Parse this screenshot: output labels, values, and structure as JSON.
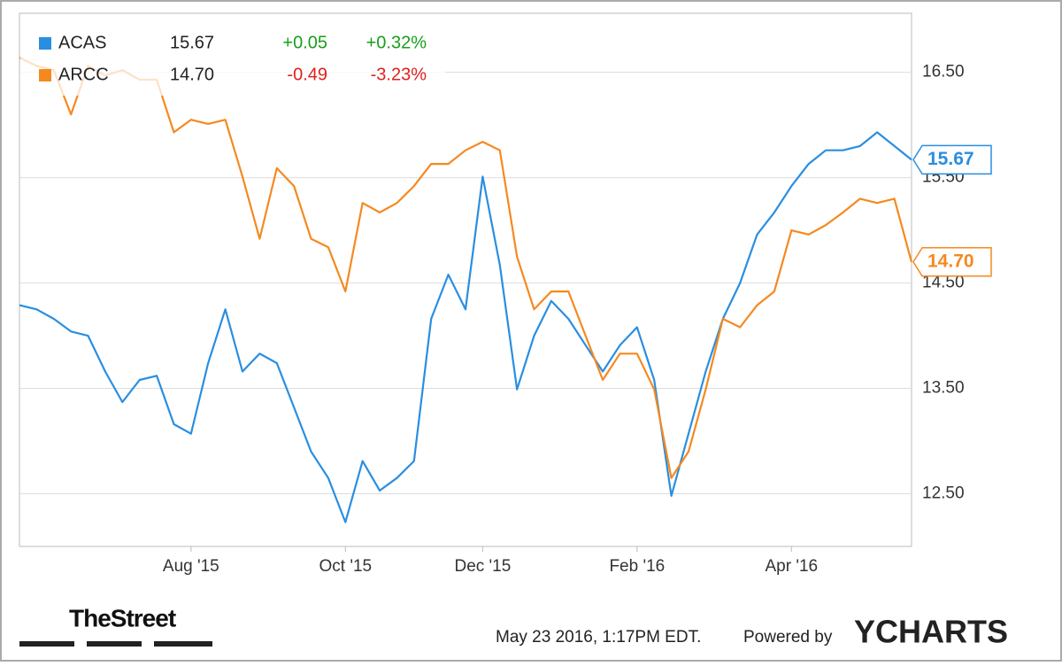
{
  "chart_data": {
    "type": "line",
    "categories": [
      null,
      null,
      null,
      null,
      null,
      null,
      null,
      null,
      null,
      null,
      "Aug '15",
      null,
      null,
      null,
      null,
      null,
      null,
      null,
      null,
      "Oct '15",
      null,
      null,
      null,
      null,
      null,
      null,
      null,
      "Dec '15",
      null,
      null,
      null,
      null,
      null,
      null,
      null,
      null,
      "Feb '16",
      null,
      null,
      null,
      null,
      null,
      null,
      null,
      null,
      "Apr '16",
      null,
      null,
      null,
      null,
      null,
      null,
      null
    ],
    "series": [
      {
        "name": "ACAS",
        "color": "#2a8ee0",
        "last": "15.67",
        "change": "+0.05",
        "change_pct": "+0.32%",
        "change_color": "#1a9e1a",
        "values": [
          14.29,
          14.25,
          14.16,
          14.04,
          14.0,
          13.66,
          13.37,
          13.58,
          13.62,
          13.16,
          13.07,
          13.74,
          14.25,
          13.66,
          13.83,
          13.74,
          13.32,
          12.9,
          12.65,
          12.23,
          12.81,
          12.53,
          12.65,
          12.81,
          14.16,
          14.58,
          14.25,
          15.51,
          14.67,
          13.49,
          14.0,
          14.33,
          14.16,
          13.91,
          13.66,
          13.91,
          14.08,
          13.58,
          12.48,
          13.07,
          13.66,
          14.16,
          14.5,
          14.96,
          15.17,
          15.42,
          15.63,
          15.76,
          15.76,
          15.8,
          15.93,
          15.8,
          15.67
        ]
      },
      {
        "name": "ARCC",
        "color": "#f5891f",
        "last": "14.70",
        "change": "-0.49",
        "change_pct": "-3.23%",
        "change_color": "#e0201c",
        "values": [
          16.64,
          16.56,
          16.52,
          16.1,
          16.56,
          16.47,
          16.52,
          16.43,
          16.43,
          15.93,
          16.05,
          16.01,
          16.05,
          15.51,
          14.92,
          15.59,
          15.42,
          14.92,
          14.84,
          14.42,
          15.26,
          15.17,
          15.26,
          15.42,
          15.63,
          15.63,
          15.76,
          15.84,
          15.76,
          14.75,
          14.25,
          14.42,
          14.42,
          14.0,
          13.58,
          13.83,
          13.83,
          13.49,
          12.65,
          12.9,
          13.49,
          14.16,
          14.08,
          14.29,
          14.42,
          15.0,
          14.96,
          15.05,
          15.17,
          15.3,
          15.26,
          15.3,
          14.7
        ]
      }
    ],
    "ylim": [
      12.0,
      17.06
    ],
    "yticks": [
      {
        "value": 12.5,
        "label": "12.50"
      },
      {
        "value": 13.5,
        "label": "13.50"
      },
      {
        "value": 14.5,
        "label": "14.50"
      },
      {
        "value": 15.5,
        "label": "15.50"
      },
      {
        "value": 16.5,
        "label": "16.50"
      }
    ],
    "grid": true
  },
  "footer": {
    "brand": "TheStreet",
    "timestamp": "May 23 2016, 1:17PM EDT.",
    "powered": "Powered by",
    "logo": "YCHARTS"
  }
}
